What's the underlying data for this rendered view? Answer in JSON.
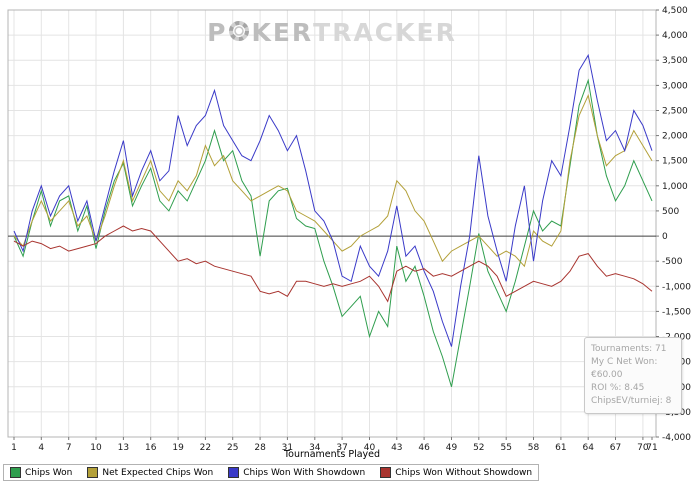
{
  "watermark": {
    "letter_p": "P",
    "letters_ker": "KER",
    "word_tracker": "TRACKER"
  },
  "info_box": {
    "lines": [
      "Tournaments: 71",
      "My C Net Won: €60.00",
      "ROI %: 8.45",
      "ChipsEV/turniej: 8"
    ]
  },
  "chart_data": {
    "type": "line",
    "title": "",
    "xlabel": "Tournaments Played",
    "ylabel": "",
    "ylim": [
      -4000,
      4500
    ],
    "ytick_step": 500,
    "grid": true,
    "legend_position": "bottom",
    "x_ticks": [
      1,
      4,
      7,
      10,
      13,
      16,
      19,
      22,
      25,
      28,
      31,
      34,
      37,
      40,
      43,
      46,
      49,
      52,
      55,
      58,
      61,
      64,
      67,
      70,
      71
    ],
    "series": [
      {
        "name": "Chips Won",
        "color": "#2f9e4e",
        "values": [
          0,
          -400,
          300,
          900,
          200,
          700,
          800,
          100,
          600,
          -250,
          500,
          1100,
          1450,
          600,
          1000,
          1350,
          700,
          500,
          900,
          700,
          1100,
          1500,
          2100,
          1500,
          1700,
          1100,
          800,
          -400,
          700,
          900,
          950,
          350,
          200,
          150,
          -500,
          -1000,
          -1600,
          -1400,
          -1200,
          -2000,
          -1500,
          -1800,
          -200,
          -900,
          -600,
          -1200,
          -1900,
          -2400,
          -3000,
          -2000,
          -1000,
          50,
          -700,
          -1100,
          -1500,
          -900,
          -200,
          500,
          100,
          300,
          200,
          1400,
          2600,
          3100,
          2000,
          1200,
          700,
          1000,
          1500,
          1100,
          700
        ]
      },
      {
        "name": "Net Expected Chips Won",
        "color": "#b3a039",
        "values": [
          0,
          -200,
          300,
          700,
          300,
          500,
          700,
          200,
          400,
          -100,
          400,
          1000,
          1500,
          700,
          1100,
          1500,
          900,
          700,
          1100,
          900,
          1200,
          1800,
          1400,
          1600,
          1100,
          900,
          700,
          800,
          900,
          1000,
          900,
          500,
          400,
          300,
          100,
          -100,
          -300,
          -200,
          0,
          100,
          200,
          400,
          1100,
          900,
          500,
          300,
          -100,
          -500,
          -300,
          -200,
          -100,
          0,
          -200,
          -400,
          -300,
          -400,
          -600,
          100,
          -100,
          -200,
          100,
          1500,
          2400,
          2800,
          2000,
          1400,
          1600,
          1700,
          2100,
          1800,
          1500
        ]
      },
      {
        "name": "Chips Won With Showdown",
        "color": "#3a3ac8",
        "values": [
          100,
          -300,
          500,
          1000,
          400,
          800,
          1000,
          300,
          700,
          -100,
          600,
          1300,
          1900,
          800,
          1300,
          1700,
          1100,
          1300,
          2400,
          1800,
          2200,
          2400,
          2900,
          2200,
          1900,
          1600,
          1500,
          1900,
          2400,
          2100,
          1700,
          2000,
          1300,
          500,
          300,
          -100,
          -800,
          -900,
          -200,
          -600,
          -800,
          -300,
          600,
          -400,
          -200,
          -700,
          -1100,
          -1700,
          -2200,
          -1000,
          0,
          1600,
          400,
          -300,
          -900,
          200,
          1000,
          -500,
          700,
          1500,
          1200,
          2200,
          3300,
          3600,
          2700,
          1900,
          2100,
          1700,
          2500,
          2200,
          1700
        ]
      },
      {
        "name": "Chips Won Without Showdown",
        "color": "#a8342f",
        "values": [
          -100,
          -200,
          -100,
          -150,
          -250,
          -200,
          -300,
          -250,
          -200,
          -150,
          0,
          100,
          200,
          100,
          150,
          100,
          -100,
          -300,
          -500,
          -450,
          -550,
          -500,
          -600,
          -650,
          -700,
          -750,
          -800,
          -1100,
          -1150,
          -1100,
          -1200,
          -900,
          -900,
          -950,
          -1000,
          -950,
          -1000,
          -950,
          -900,
          -800,
          -1000,
          -1300,
          -700,
          -600,
          -700,
          -650,
          -800,
          -750,
          -800,
          -700,
          -600,
          -500,
          -600,
          -800,
          -1200,
          -1100,
          -1000,
          -900,
          -950,
          -1000,
          -900,
          -700,
          -400,
          -350,
          -600,
          -800,
          -750,
          -800,
          -850,
          -950,
          -1100
        ]
      }
    ]
  }
}
